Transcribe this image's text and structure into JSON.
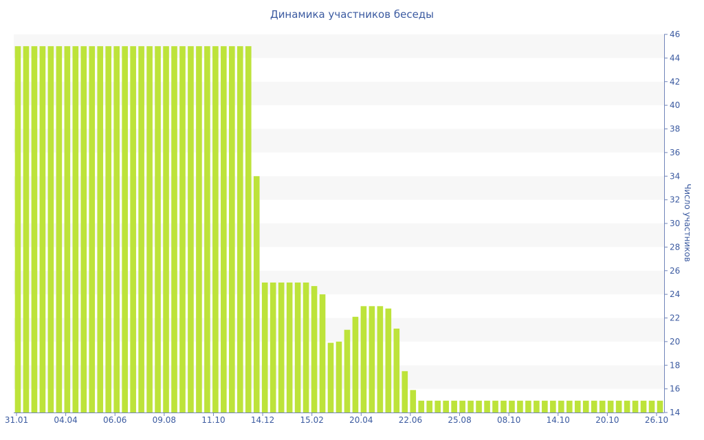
{
  "chart_data": {
    "type": "bar",
    "title": "Динамика участников беседы",
    "ylabel": "Число участников",
    "ylim": [
      14,
      46
    ],
    "yticks": [
      14,
      16,
      18,
      20,
      22,
      24,
      26,
      28,
      30,
      32,
      34,
      36,
      38,
      40,
      42,
      44,
      46
    ],
    "x_tick_labels": [
      "31.01",
      "04.04",
      "06.06",
      "09.08",
      "11.10",
      "14.12",
      "15.02",
      "20.04",
      "22.06",
      "25.08",
      "08.10",
      "14.10",
      "20.10",
      "26.10"
    ],
    "y_axis_position": "right",
    "grid": "horizontal bands",
    "bar_color": "#bde33a",
    "values": [
      45,
      45,
      45,
      45,
      45,
      45,
      45,
      45,
      45,
      45,
      45,
      45,
      45,
      45,
      45,
      45,
      45,
      45,
      45,
      45,
      45,
      45,
      45,
      45,
      45,
      45,
      45,
      45,
      45,
      34,
      25,
      25,
      25,
      25,
      25,
      25,
      24.7,
      24,
      19.9,
      20,
      21,
      22.1,
      23,
      23,
      23,
      22.8,
      21.1,
      17.5,
      15.9,
      15,
      15,
      15,
      15,
      15,
      15,
      15,
      15,
      15,
      15,
      15,
      15,
      15,
      15,
      15,
      15,
      15,
      15,
      15,
      15,
      15,
      15,
      15,
      15,
      15,
      15,
      15,
      15,
      15,
      15
    ]
  }
}
